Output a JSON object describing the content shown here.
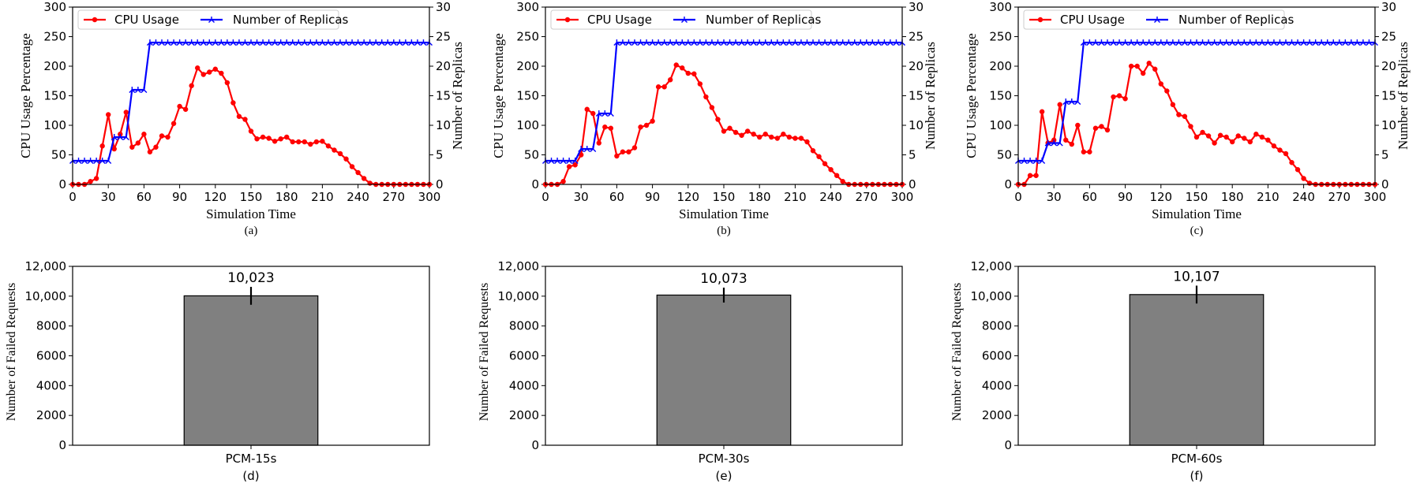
{
  "chart_data": [
    {
      "type": "line",
      "panel": "(a)",
      "xlabel": "Simulation Time",
      "ylabel": "CPU Usage Percentage",
      "y2label": "Number of Replicas",
      "xlim": [
        0,
        300
      ],
      "ylim": [
        0,
        300
      ],
      "y2lim": [
        0,
        30
      ],
      "xticks": [
        "0",
        "30",
        "60",
        "90",
        "120",
        "150",
        "180",
        "210",
        "240",
        "270",
        "300"
      ],
      "yticks": [
        "0",
        "50",
        "100",
        "150",
        "200",
        "250",
        "300"
      ],
      "y2ticks": [
        "0",
        "5",
        "10",
        "15",
        "20",
        "25",
        "30"
      ],
      "legend": "top-left",
      "series": [
        {
          "name": "CPU Usage",
          "color": "#ff0000",
          "axis": "left",
          "x": [
            0,
            5,
            10,
            15,
            20,
            25,
            30,
            35,
            40,
            45,
            50,
            55,
            60,
            65,
            70,
            75,
            80,
            85,
            90,
            95,
            100,
            105,
            110,
            115,
            120,
            125,
            130,
            135,
            140,
            145,
            150,
            155,
            160,
            165,
            170,
            175,
            180,
            185,
            190,
            195,
            200,
            205,
            210,
            215,
            220,
            225,
            230,
            235,
            240,
            245,
            250,
            255,
            260,
            265,
            270,
            275,
            280,
            285,
            290,
            295,
            300
          ],
          "values": [
            0,
            0,
            0,
            5,
            10,
            65,
            118,
            60,
            85,
            122,
            63,
            70,
            85,
            55,
            63,
            82,
            80,
            103,
            132,
            127,
            167,
            197,
            186,
            190,
            195,
            188,
            172,
            138,
            115,
            110,
            90,
            77,
            80,
            78,
            73,
            77,
            80,
            72,
            72,
            72,
            68,
            72,
            73,
            65,
            58,
            52,
            43,
            30,
            20,
            10,
            2,
            0,
            0,
            0,
            0,
            0,
            0,
            0,
            0,
            0,
            0
          ]
        },
        {
          "name": "Number of Replicas",
          "color": "#0000ff",
          "axis": "right",
          "x": [
            0,
            5,
            10,
            15,
            20,
            25,
            30,
            35,
            40,
            45,
            50,
            55,
            60,
            65,
            70,
            75,
            80,
            85,
            90,
            95,
            100,
            105,
            110,
            115,
            120,
            125,
            130,
            135,
            140,
            145,
            150,
            155,
            160,
            165,
            170,
            175,
            180,
            185,
            190,
            195,
            200,
            205,
            210,
            215,
            220,
            225,
            230,
            235,
            240,
            245,
            250,
            255,
            260,
            265,
            270,
            275,
            280,
            285,
            290,
            295,
            300
          ],
          "values": [
            4,
            4,
            4,
            4,
            4,
            4,
            4,
            8,
            8,
            8,
            16,
            16,
            16,
            24,
            24,
            24,
            24,
            24,
            24,
            24,
            24,
            24,
            24,
            24,
            24,
            24,
            24,
            24,
            24,
            24,
            24,
            24,
            24,
            24,
            24,
            24,
            24,
            24,
            24,
            24,
            24,
            24,
            24,
            24,
            24,
            24,
            24,
            24,
            24,
            24,
            24,
            24,
            24,
            24,
            24,
            24,
            24,
            24,
            24,
            24,
            24
          ]
        }
      ]
    },
    {
      "type": "line",
      "panel": "(b)",
      "xlabel": "Simulation Time",
      "ylabel": "CPU Usage Percentage",
      "y2label": "Number of Replicas",
      "xlim": [
        0,
        300
      ],
      "ylim": [
        0,
        300
      ],
      "y2lim": [
        0,
        30
      ],
      "xticks": [
        "0",
        "30",
        "60",
        "90",
        "120",
        "150",
        "180",
        "210",
        "240",
        "270",
        "300"
      ],
      "yticks": [
        "0",
        "50",
        "100",
        "150",
        "200",
        "250",
        "300"
      ],
      "y2ticks": [
        "0",
        "5",
        "10",
        "15",
        "20",
        "25",
        "30"
      ],
      "legend": "top-left",
      "series": [
        {
          "name": "CPU Usage",
          "color": "#ff0000",
          "axis": "left",
          "x": [
            0,
            5,
            10,
            15,
            20,
            25,
            30,
            35,
            40,
            45,
            50,
            55,
            60,
            65,
            70,
            75,
            80,
            85,
            90,
            95,
            100,
            105,
            110,
            115,
            120,
            125,
            130,
            135,
            140,
            145,
            150,
            155,
            160,
            165,
            170,
            175,
            180,
            185,
            190,
            195,
            200,
            205,
            210,
            215,
            220,
            225,
            230,
            235,
            240,
            245,
            250,
            255,
            260,
            265,
            270,
            275,
            280,
            285,
            290,
            295,
            300
          ],
          "values": [
            0,
            0,
            0,
            5,
            30,
            33,
            50,
            127,
            120,
            70,
            97,
            95,
            48,
            55,
            55,
            62,
            97,
            100,
            107,
            165,
            165,
            177,
            202,
            197,
            188,
            187,
            170,
            148,
            130,
            110,
            90,
            95,
            88,
            83,
            90,
            85,
            80,
            85,
            80,
            78,
            85,
            80,
            78,
            78,
            72,
            57,
            47,
            35,
            25,
            15,
            5,
            0,
            0,
            0,
            0,
            0,
            0,
            0,
            0,
            0,
            0
          ]
        },
        {
          "name": "Number of Replicas",
          "color": "#0000ff",
          "axis": "right",
          "x": [
            0,
            5,
            10,
            15,
            20,
            25,
            30,
            35,
            40,
            45,
            50,
            55,
            60,
            65,
            70,
            75,
            80,
            85,
            90,
            95,
            100,
            105,
            110,
            115,
            120,
            125,
            130,
            135,
            140,
            145,
            150,
            155,
            160,
            165,
            170,
            175,
            180,
            185,
            190,
            195,
            200,
            205,
            210,
            215,
            220,
            225,
            230,
            235,
            240,
            245,
            250,
            255,
            260,
            265,
            270,
            275,
            280,
            285,
            290,
            295,
            300
          ],
          "values": [
            4,
            4,
            4,
            4,
            4,
            4,
            6,
            6,
            6,
            12,
            12,
            12,
            24,
            24,
            24,
            24,
            24,
            24,
            24,
            24,
            24,
            24,
            24,
            24,
            24,
            24,
            24,
            24,
            24,
            24,
            24,
            24,
            24,
            24,
            24,
            24,
            24,
            24,
            24,
            24,
            24,
            24,
            24,
            24,
            24,
            24,
            24,
            24,
            24,
            24,
            24,
            24,
            24,
            24,
            24,
            24,
            24,
            24,
            24,
            24,
            24
          ]
        }
      ]
    },
    {
      "type": "line",
      "panel": "(c)",
      "xlabel": "Simulation Time",
      "ylabel": "CPU Usage Percentage",
      "y2label": "Number of Replicas",
      "xlim": [
        0,
        300
      ],
      "ylim": [
        0,
        300
      ],
      "y2lim": [
        0,
        30
      ],
      "xticks": [
        "0",
        "30",
        "60",
        "90",
        "120",
        "150",
        "180",
        "210",
        "240",
        "270",
        "300"
      ],
      "yticks": [
        "0",
        "50",
        "100",
        "150",
        "200",
        "250",
        "300"
      ],
      "y2ticks": [
        "0",
        "5",
        "10",
        "15",
        "20",
        "25",
        "30"
      ],
      "legend": "top-left",
      "series": [
        {
          "name": "CPU Usage",
          "color": "#ff0000",
          "axis": "left",
          "x": [
            0,
            5,
            10,
            15,
            20,
            25,
            30,
            35,
            40,
            45,
            50,
            55,
            60,
            65,
            70,
            75,
            80,
            85,
            90,
            95,
            100,
            105,
            110,
            115,
            120,
            125,
            130,
            135,
            140,
            145,
            150,
            155,
            160,
            165,
            170,
            175,
            180,
            185,
            190,
            195,
            200,
            205,
            210,
            215,
            220,
            225,
            230,
            235,
            240,
            245,
            250,
            255,
            260,
            265,
            270,
            275,
            280,
            285,
            290,
            295,
            300
          ],
          "values": [
            0,
            0,
            15,
            15,
            123,
            70,
            75,
            135,
            75,
            68,
            100,
            55,
            55,
            95,
            98,
            92,
            148,
            150,
            145,
            200,
            200,
            188,
            205,
            195,
            170,
            158,
            135,
            118,
            115,
            98,
            80,
            88,
            82,
            70,
            83,
            80,
            72,
            82,
            78,
            72,
            85,
            80,
            75,
            65,
            58,
            52,
            37,
            25,
            10,
            2,
            0,
            0,
            0,
            0,
            0,
            0,
            0,
            0,
            0,
            0,
            0
          ]
        },
        {
          "name": "Number of Replicas",
          "color": "#0000ff",
          "axis": "right",
          "x": [
            0,
            5,
            10,
            15,
            20,
            25,
            30,
            35,
            40,
            45,
            50,
            55,
            60,
            65,
            70,
            75,
            80,
            85,
            90,
            95,
            100,
            105,
            110,
            115,
            120,
            125,
            130,
            135,
            140,
            145,
            150,
            155,
            160,
            165,
            170,
            175,
            180,
            185,
            190,
            195,
            200,
            205,
            210,
            215,
            220,
            225,
            230,
            235,
            240,
            245,
            250,
            255,
            260,
            265,
            270,
            275,
            280,
            285,
            290,
            295,
            300
          ],
          "values": [
            4,
            4,
            4,
            4,
            4,
            7,
            7,
            7,
            14,
            14,
            14,
            24,
            24,
            24,
            24,
            24,
            24,
            24,
            24,
            24,
            24,
            24,
            24,
            24,
            24,
            24,
            24,
            24,
            24,
            24,
            24,
            24,
            24,
            24,
            24,
            24,
            24,
            24,
            24,
            24,
            24,
            24,
            24,
            24,
            24,
            24,
            24,
            24,
            24,
            24,
            24,
            24,
            24,
            24,
            24,
            24,
            24,
            24,
            24,
            24,
            24
          ]
        }
      ]
    },
    {
      "type": "bar",
      "panel": "(d)",
      "categories": [
        "PCM-15s"
      ],
      "values": [
        10023
      ],
      "value_labels": [
        "10,023"
      ],
      "error": [
        600
      ],
      "ylabel": "Number of Failed Requests",
      "ylim": [
        0,
        12000
      ],
      "yticks": [
        "0",
        "2000",
        "4000",
        "6000",
        "8000",
        "10,000",
        "12,000"
      ],
      "bar_color": "#808080"
    },
    {
      "type": "bar",
      "panel": "(e)",
      "categories": [
        "PCM-30s"
      ],
      "values": [
        10073
      ],
      "value_labels": [
        "10,073"
      ],
      "error": [
        500
      ],
      "ylabel": "Number of Failed Requests",
      "ylim": [
        0,
        12000
      ],
      "yticks": [
        "0",
        "2000",
        "4000",
        "6000",
        "8000",
        "10,000",
        "12,000"
      ],
      "bar_color": "#808080"
    },
    {
      "type": "bar",
      "panel": "(f)",
      "categories": [
        "PCM-60s"
      ],
      "values": [
        10107
      ],
      "value_labels": [
        "10,107"
      ],
      "error": [
        600
      ],
      "ylabel": "Number of Failed Requests",
      "ylim": [
        0,
        12000
      ],
      "yticks": [
        "0",
        "2000",
        "4000",
        "6000",
        "8000",
        "10,000",
        "12,000"
      ],
      "bar_color": "#808080"
    }
  ]
}
